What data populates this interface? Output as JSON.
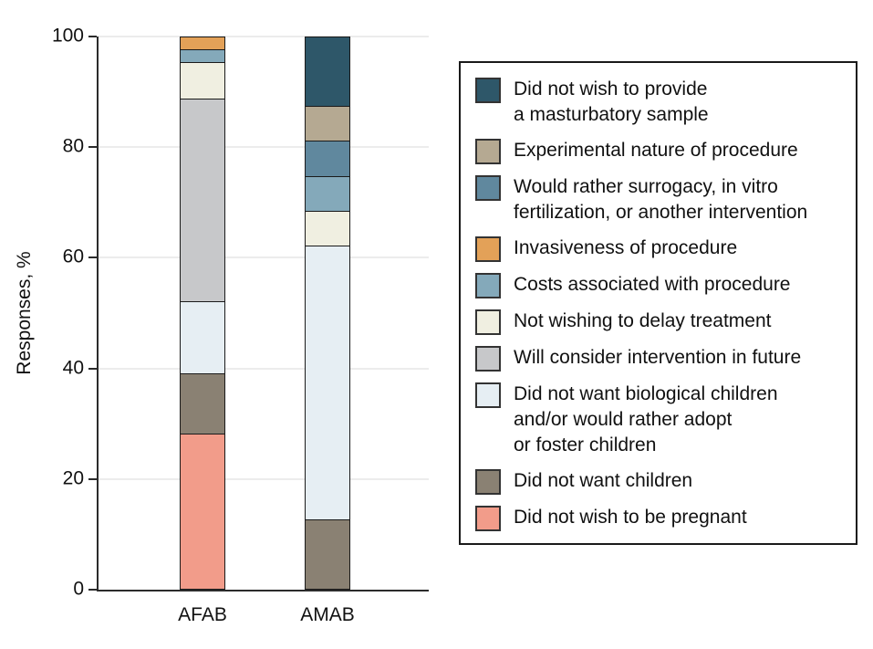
{
  "figure": {
    "background": "#ffffff",
    "axis_color": "#2b2b2b",
    "gridline_color": "#ececec",
    "ylabel": "Responses, %"
  },
  "chart_data": {
    "type": "bar",
    "stacked": true,
    "title": "",
    "xlabel": "",
    "ylabel": "Responses, %",
    "ylim": [
      0,
      100
    ],
    "yticks": [
      0,
      20,
      40,
      60,
      80,
      100
    ],
    "grid": "horizontal",
    "legend_position": "right",
    "categories": [
      "AFAB",
      "AMAB"
    ],
    "series": [
      {
        "name": "Did not wish to provide\na masturbatory sample",
        "color": "#2E5769",
        "values": [
          0,
          12.5
        ]
      },
      {
        "name": "Experimental nature of procedure",
        "color": "#B5A992",
        "values": [
          0,
          6.25
        ]
      },
      {
        "name": "Would rather surrogacy, in vitro\nfertilization, or another intervention",
        "color": "#60889E",
        "values": [
          0,
          6.25
        ]
      },
      {
        "name": "Invasiveness of procedure",
        "color": "#E3A158",
        "values": [
          2.2,
          0
        ]
      },
      {
        "name": "Costs associated with procedure",
        "color": "#84A9BA",
        "values": [
          2.2,
          6.25
        ]
      },
      {
        "name": "Not wishing to delay treatment",
        "color": "#F0EFE1",
        "values": [
          6.5,
          6.25
        ]
      },
      {
        "name": "Will consider intervention in future",
        "color": "#C7C8CA",
        "values": [
          37.0,
          0
        ]
      },
      {
        "name": "Did not want biological children\nand/or would rather adopt\nor foster children",
        "color": "#E6EEF3",
        "values": [
          13.0,
          50.0
        ]
      },
      {
        "name": "Did not want children",
        "color": "#8A8173",
        "values": [
          10.9,
          12.5
        ]
      },
      {
        "name": "Did not wish to be pregnant",
        "color": "#F29C8A",
        "values": [
          28.3,
          0
        ]
      }
    ]
  }
}
